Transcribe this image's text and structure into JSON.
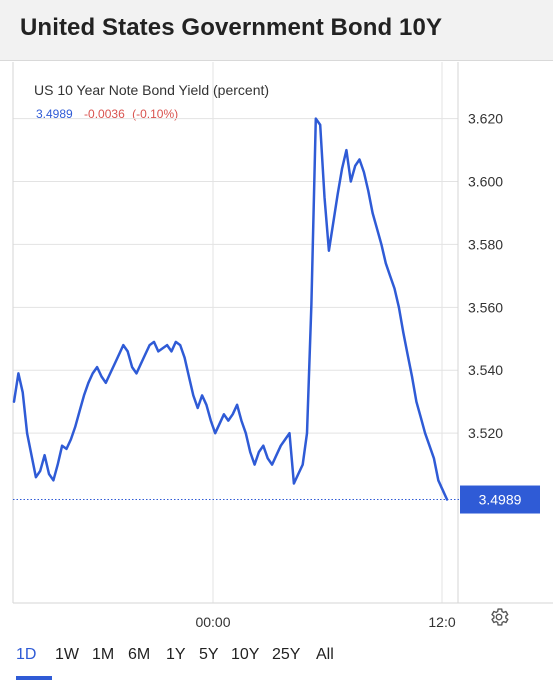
{
  "header": {
    "title": "United States Government Bond 10Y"
  },
  "legend": {
    "series_title": "US 10 Year Note Bond Yield (percent)",
    "value": "3.4989",
    "change": "-0.0036",
    "change_pct": "(-0.10%)"
  },
  "price_tag": "3.4989",
  "colors": {
    "line": "#2f5bd6",
    "grid": "#e3e3e3",
    "negative": "#d9534f"
  },
  "range_buttons": [
    {
      "label": "1D",
      "active": true
    },
    {
      "label": "1W",
      "active": false
    },
    {
      "label": "1M",
      "active": false
    },
    {
      "label": "6M",
      "active": false
    },
    {
      "label": "1Y",
      "active": false
    },
    {
      "label": "5Y",
      "active": false
    },
    {
      "label": "10Y",
      "active": false
    },
    {
      "label": "25Y",
      "active": false
    },
    {
      "label": "All",
      "active": false
    }
  ],
  "settings_icon": "gear-icon",
  "chart_data": {
    "type": "line",
    "y_ticks": [
      "3.620",
      "3.600",
      "3.580",
      "3.560",
      "3.540",
      "3.520"
    ],
    "y_tick_values": [
      3.62,
      3.6,
      3.58,
      3.56,
      3.54,
      3.52
    ],
    "x_ticks": [
      "00:00",
      "12:0"
    ],
    "ylim": [
      3.466,
      3.638
    ],
    "last_value": 3.4989,
    "grid": true,
    "series": [
      {
        "values": [
          3.53,
          3.539,
          3.533,
          3.52,
          3.513,
          3.506,
          3.508,
          3.513,
          3.507,
          3.505,
          3.51,
          3.516,
          3.515,
          3.518,
          3.522,
          3.527,
          3.532,
          3.536,
          3.539,
          3.541,
          3.538,
          3.536,
          3.539,
          3.542,
          3.545,
          3.548,
          3.546,
          3.541,
          3.539,
          3.542,
          3.545,
          3.548,
          3.549,
          3.546,
          3.547,
          3.548,
          3.546,
          3.549,
          3.548,
          3.544,
          3.538,
          3.532,
          3.528,
          3.532,
          3.529,
          3.524,
          3.52,
          3.523,
          3.526,
          3.524,
          3.526,
          3.529,
          3.524,
          3.52,
          3.514,
          3.51,
          3.514,
          3.516,
          3.512,
          3.51,
          3.513,
          3.516,
          3.518,
          3.52,
          3.504,
          3.507,
          3.51,
          3.52,
          3.561,
          3.62,
          3.618,
          3.595,
          3.578,
          3.587,
          3.596,
          3.604,
          3.61,
          3.6,
          3.605,
          3.607,
          3.603,
          3.597,
          3.59,
          3.585,
          3.58,
          3.574,
          3.57,
          3.566,
          3.56,
          3.552,
          3.545,
          3.538,
          3.53,
          3.525,
          3.52,
          3.516,
          3.512,
          3.505,
          3.502,
          3.4989
        ]
      }
    ]
  }
}
